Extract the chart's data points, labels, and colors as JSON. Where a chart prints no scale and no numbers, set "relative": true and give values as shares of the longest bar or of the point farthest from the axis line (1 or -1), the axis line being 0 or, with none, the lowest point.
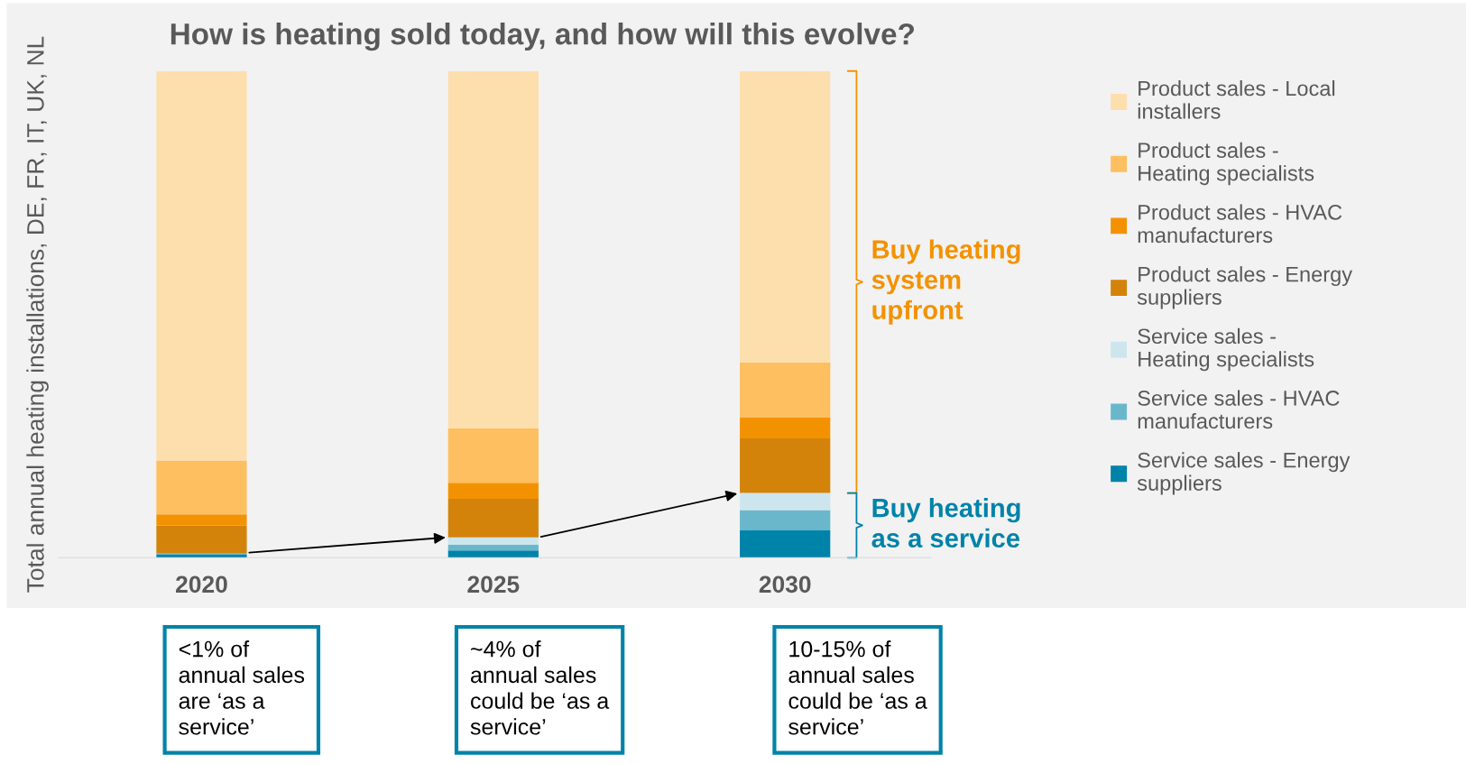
{
  "chart_data": {
    "type": "bar",
    "title": "How is heating sold today, and how will this evolve?",
    "ylabel": "Total annual heating installations, DE, FR, IT, UK, NL",
    "categories": [
      "2020",
      "2025",
      "2030"
    ],
    "stacked": true,
    "relative": true,
    "legend": "right",
    "series": [
      {
        "name": "Service sales - Energy suppliers",
        "color": "#0083a9",
        "values": [
          0.006,
          0.015,
          0.056
        ]
      },
      {
        "name": "Service sales - HVAC manufacturers",
        "color": "#6ab7cc",
        "values": [
          0.004,
          0.012,
          0.042
        ]
      },
      {
        "name": "Service sales - Heating specialists",
        "color": "#cde6ee",
        "values": [
          null,
          0.015,
          0.035
        ]
      },
      {
        "name": "Product sales - Energy suppliers",
        "color": "#d4830a",
        "values": [
          0.056,
          0.079,
          0.112
        ]
      },
      {
        "name": "Product sales - HVAC manufacturers",
        "color": "#f39200",
        "values": [
          0.023,
          0.033,
          0.044
        ]
      },
      {
        "name": "Product sales - Heating specialists",
        "color": "#fdbf5f",
        "values": [
          0.111,
          0.112,
          0.112
        ]
      },
      {
        "name": "Product sales - Local installers",
        "color": "#fddfae",
        "values": [
          0.8,
          0.734,
          0.599
        ]
      }
    ],
    "annotations": [
      "Buy heating system upfront",
      "Buy heating as a service",
      "<1% of annual sales are ‘as a service’",
      "~4% of annual sales could be ‘as a service’",
      "10-15% of annual sales could be ‘as a service’"
    ]
  }
}
